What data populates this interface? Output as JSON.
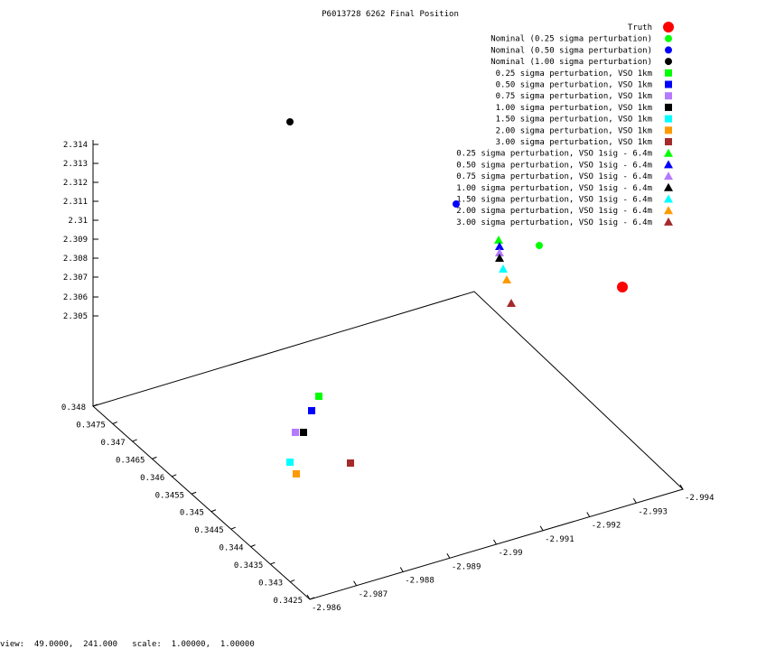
{
  "chart_data": {
    "type": "scatter",
    "subtype": "3d-scatter",
    "title": "P6013728 6262 Final Position",
    "axes": {
      "x": {
        "ticks": [
          "-2.986",
          "-2.987",
          "-2.988",
          "-2.989",
          "-2.99",
          "-2.991",
          "-2.992",
          "-2.993",
          "-2.994"
        ],
        "range": [
          -2.994,
          -2.986
        ]
      },
      "y": {
        "ticks": [
          "0.3425",
          "0.343",
          "0.3435",
          "0.344",
          "0.3445",
          "0.345",
          "0.3455",
          "0.346",
          "0.3465",
          "0.347",
          "0.3475",
          "0.348"
        ],
        "range": [
          0.3425,
          0.348
        ]
      },
      "z": {
        "ticks": [
          "2.305",
          "2.306",
          "2.307",
          "2.308",
          "2.309",
          "2.31",
          "2.311",
          "2.312",
          "2.313",
          "2.314"
        ],
        "range": [
          2.304,
          2.314
        ]
      }
    },
    "grid": false,
    "legend_position": "top-right",
    "series": [
      {
        "name": "Truth",
        "marker": "circle",
        "color": "#ff0000"
      },
      {
        "name": "Nominal (0.25 sigma perturbation)",
        "marker": "circle",
        "color": "#00ff00"
      },
      {
        "name": "Nominal (0.50 sigma perturbation)",
        "marker": "circle",
        "color": "#0000ff"
      },
      {
        "name": "Nominal (1.00 sigma perturbation)",
        "marker": "circle",
        "color": "#000000"
      },
      {
        "name": "0.25 sigma perturbation, VSO 1km",
        "marker": "square",
        "color": "#00ff00"
      },
      {
        "name": "0.50 sigma perturbation, VSO 1km",
        "marker": "square",
        "color": "#0000ff"
      },
      {
        "name": "0.75 sigma perturbation, VSO 1km",
        "marker": "square",
        "color": "#b57aff"
      },
      {
        "name": "1.00 sigma perturbation, VSO 1km",
        "marker": "square",
        "color": "#000000"
      },
      {
        "name": "1.50 sigma perturbation, VSO 1km",
        "marker": "square",
        "color": "#00ffff"
      },
      {
        "name": "2.00 sigma perturbation, VSO 1km",
        "marker": "square",
        "color": "#ff9900"
      },
      {
        "name": "3.00 sigma perturbation, VSO 1km",
        "marker": "square",
        "color": "#a52a2a"
      },
      {
        "name": "0.25 sigma perturbation, VSO 1sig - 6.4m",
        "marker": "triangle",
        "color": "#00ff00"
      },
      {
        "name": "0.50 sigma perturbation, VSO 1sig - 6.4m",
        "marker": "triangle",
        "color": "#0000ff"
      },
      {
        "name": "0.75 sigma perturbation, VSO 1sig - 6.4m",
        "marker": "triangle",
        "color": "#b57aff"
      },
      {
        "name": "1.00 sigma perturbation, VSO 1sig - 6.4m",
        "marker": "triangle",
        "color": "#000000"
      },
      {
        "name": "1.50 sigma perturbation, VSO 1sig - 6.4m",
        "marker": "triangle",
        "color": "#00ffff"
      },
      {
        "name": "2.00 sigma perturbation, VSO 1sig - 6.4m",
        "marker": "triangle",
        "color": "#ff9900"
      },
      {
        "name": "3.00 sigma perturbation, VSO 1sig - 6.4m",
        "marker": "triangle",
        "color": "#a52a2a"
      }
    ]
  },
  "status_bar": "view:  49.0000,  241.000   scale:  1.00000,  1.00000"
}
